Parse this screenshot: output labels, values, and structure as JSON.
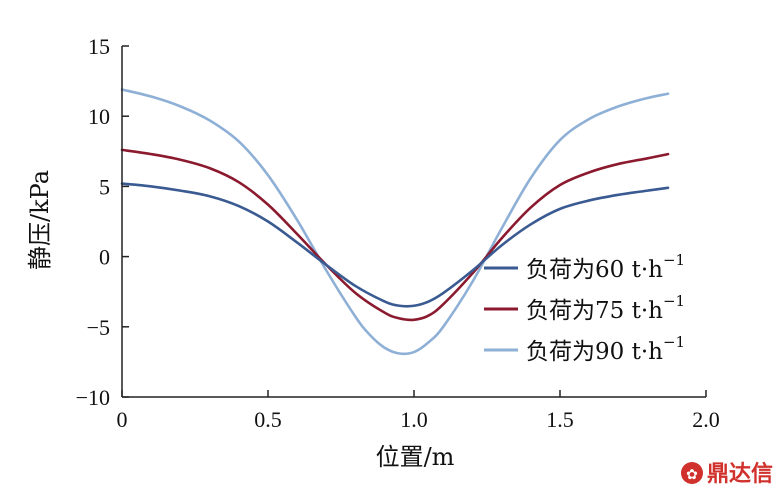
{
  "chart_data": {
    "type": "line",
    "xlabel": "位置/m",
    "ylabel": "静压/kPa",
    "xlim": [
      0,
      2.0
    ],
    "ylim": [
      -10,
      15
    ],
    "xticks": [
      0,
      0.5,
      1.0,
      1.5,
      2.0
    ],
    "xtick_labels": [
      "0",
      "0.5",
      "1.0",
      "1.5",
      "2.0"
    ],
    "yticks": [
      -10,
      -5,
      0,
      5,
      10,
      15
    ],
    "ytick_labels": [
      "−10",
      "−5",
      "0",
      "5",
      "10",
      "15"
    ],
    "grid": false,
    "legend_position": "center-right",
    "series": [
      {
        "name": "负荷为60 t·h−1",
        "label_main": "负荷为60 t·h",
        "label_sup": "−1",
        "color": "#3a5a92",
        "x": [
          0,
          0.1,
          0.2,
          0.3,
          0.4,
          0.5,
          0.6,
          0.7,
          0.8,
          0.9,
          0.95,
          1.0,
          1.05,
          1.1,
          1.2,
          1.3,
          1.4,
          1.5,
          1.6,
          1.7,
          1.8,
          1.87
        ],
        "y": [
          5.2,
          5.0,
          4.7,
          4.3,
          3.6,
          2.5,
          1.0,
          -0.6,
          -2.1,
          -3.2,
          -3.5,
          -3.5,
          -3.2,
          -2.6,
          -1.0,
          0.8,
          2.3,
          3.4,
          4.0,
          4.4,
          4.7,
          4.9
        ]
      },
      {
        "name": "负荷为75 t·h−1",
        "label_main": "负荷为75 t·h",
        "label_sup": "−1",
        "color": "#8b1a2f",
        "x": [
          0,
          0.1,
          0.2,
          0.3,
          0.4,
          0.5,
          0.6,
          0.7,
          0.8,
          0.9,
          0.95,
          1.0,
          1.05,
          1.1,
          1.2,
          1.3,
          1.4,
          1.5,
          1.6,
          1.7,
          1.8,
          1.87
        ],
        "y": [
          7.6,
          7.3,
          6.9,
          6.3,
          5.3,
          3.7,
          1.6,
          -0.6,
          -2.6,
          -4.0,
          -4.4,
          -4.5,
          -4.2,
          -3.4,
          -1.2,
          1.3,
          3.5,
          5.1,
          6.0,
          6.6,
          7.0,
          7.3
        ]
      },
      {
        "name": "负荷为90 t·h−1",
        "label_main": "负荷为90 t·h",
        "label_sup": "−1",
        "color": "#8fb0d6",
        "x": [
          0,
          0.1,
          0.2,
          0.3,
          0.4,
          0.5,
          0.6,
          0.7,
          0.8,
          0.85,
          0.9,
          0.95,
          1.0,
          1.05,
          1.1,
          1.2,
          1.3,
          1.4,
          1.5,
          1.6,
          1.7,
          1.8,
          1.87
        ],
        "y": [
          11.9,
          11.4,
          10.7,
          9.7,
          8.2,
          5.8,
          2.6,
          -1.0,
          -4.3,
          -5.6,
          -6.5,
          -6.9,
          -6.8,
          -6.1,
          -5.0,
          -1.8,
          2.0,
          5.6,
          8.3,
          9.8,
          10.7,
          11.3,
          11.6
        ]
      }
    ]
  },
  "watermark": {
    "text": "鼎达信",
    "color": "#d0312d"
  }
}
